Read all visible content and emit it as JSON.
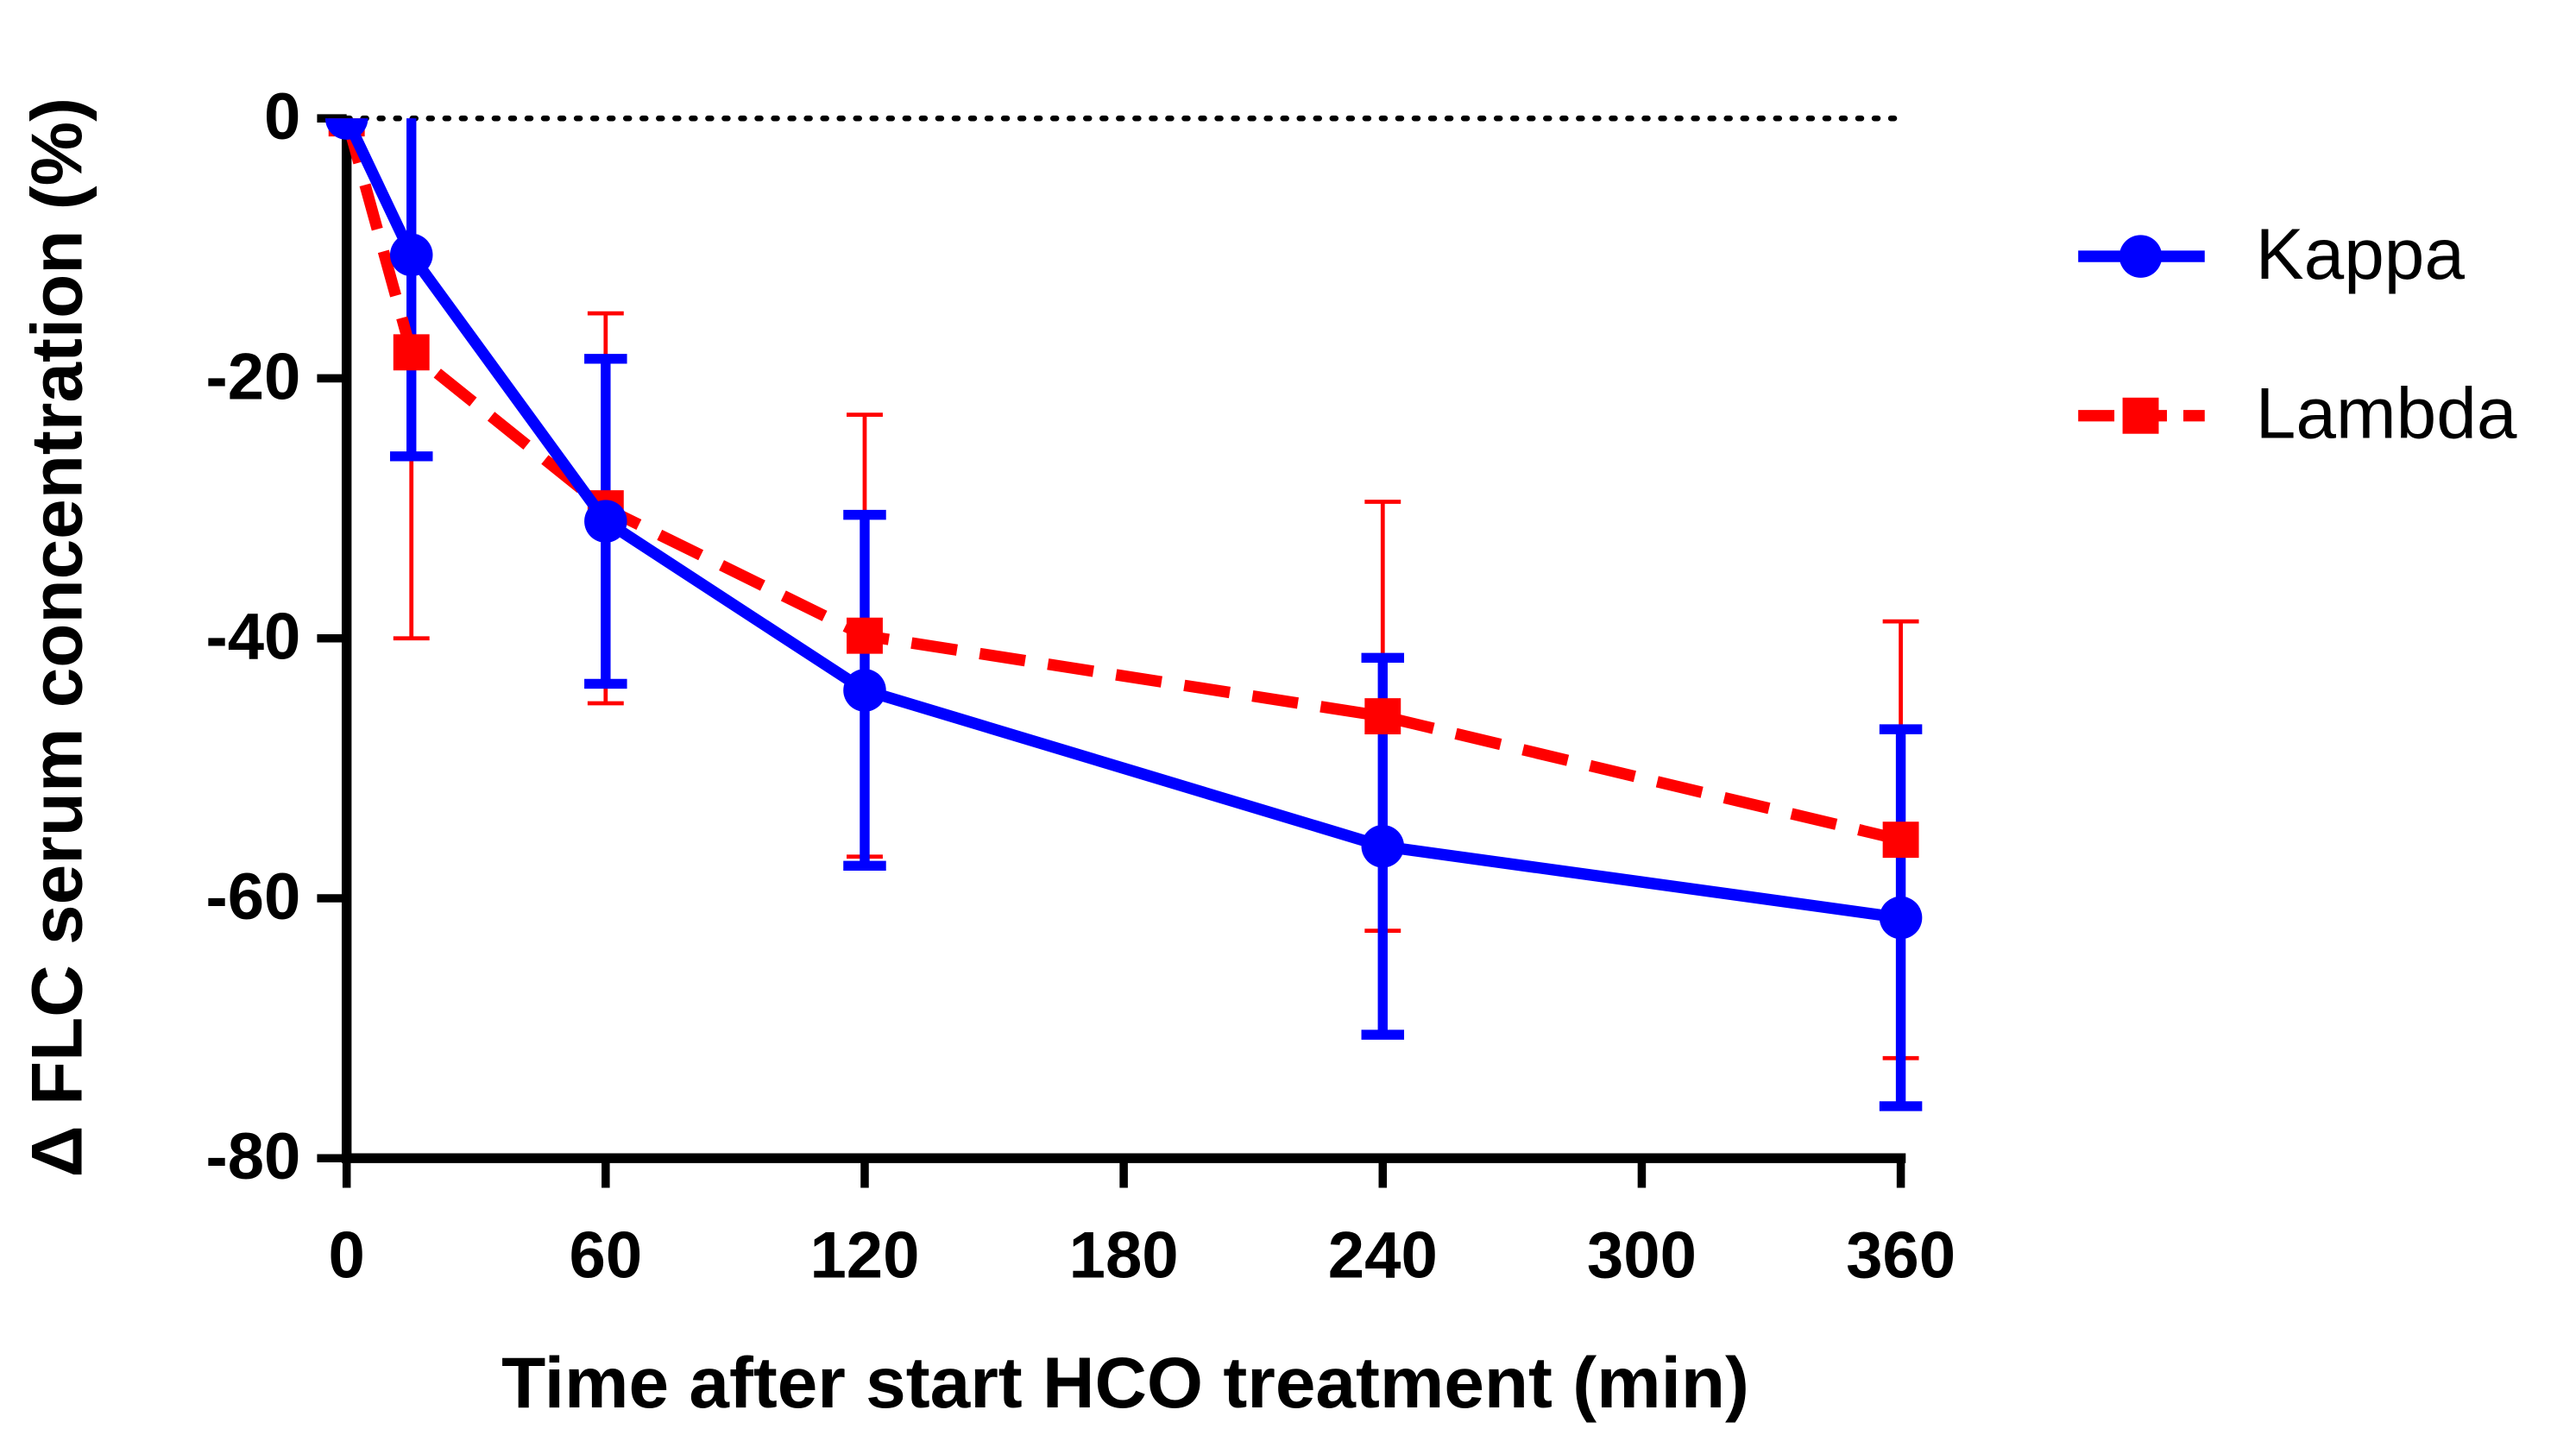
{
  "chart_data": {
    "type": "line",
    "x_label": "Time after start HCO treatment (min)",
    "y_label": "Δ FLC serum concentration (%)",
    "xlim": [
      0,
      360
    ],
    "xticks": [
      0,
      60,
      120,
      180,
      240,
      300,
      360
    ],
    "ylim": [
      -80,
      0
    ],
    "yticks": [
      0,
      -20,
      -40,
      -60,
      -80
    ],
    "reference_line": 0,
    "legend": "right",
    "x": [
      0,
      15,
      60,
      120,
      240,
      360
    ],
    "series": [
      {
        "name": "Kappa",
        "color": "#0000ff",
        "marker": "circle",
        "dash": "solid",
        "values": [
          0,
          -10.5,
          -31,
          -44,
          -56,
          -61.5
        ],
        "errors": [
          0,
          15.5,
          12.5,
          13.5,
          14.5,
          14.5
        ]
      },
      {
        "name": "Lambda",
        "color": "#ff0000",
        "marker": "square",
        "dash": "dashed",
        "values": [
          0,
          -18,
          -30,
          -39.8,
          -46,
          -55.5
        ],
        "errors": [
          0,
          22,
          15,
          17,
          16.5,
          16.8
        ]
      }
    ]
  }
}
